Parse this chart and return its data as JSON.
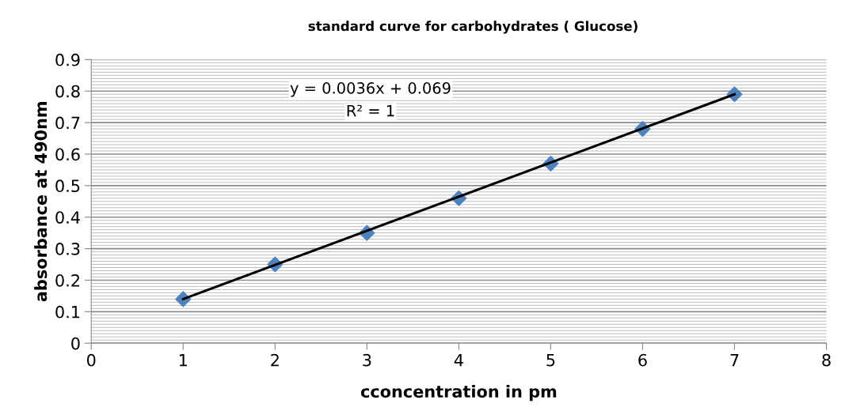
{
  "chart_data": {
    "type": "scatter",
    "title": "standard curve for carbohydrates ( Glucose)",
    "xlabel": "cconcentration in pm",
    "ylabel": "absorbance at 490nm",
    "x": [
      1,
      2,
      3,
      4,
      5,
      6,
      7
    ],
    "series": [
      {
        "color": "#4f81bd",
        "marker": "diamond",
        "values": [
          0.14,
          0.25,
          0.35,
          0.46,
          0.57,
          0.68,
          0.79
        ]
      },
      {
        "type": "line",
        "color": "#000000",
        "marker": "none",
        "x": [
          1,
          7
        ],
        "values": [
          0.14,
          0.79
        ]
      }
    ],
    "xlim": [
      0,
      8
    ],
    "xticks": [
      0,
      1,
      2,
      3,
      4,
      5,
      6,
      7,
      8
    ],
    "ylim": [
      0,
      0.9
    ],
    "yticks": [
      0,
      {
        "value": 0.01,
        "label": null
      },
      {
        "value": 0.02,
        "label": null
      },
      {
        "value": 0.03,
        "label": null
      },
      {
        "value": 0.04,
        "label": null
      },
      {
        "value": 0.05,
        "label": null
      },
      {
        "value": 0.06,
        "label": null
      },
      {
        "value": 0.07,
        "label": null
      },
      {
        "value": 0.08,
        "label": null
      },
      {
        "value": 0.09,
        "label": null
      },
      0.1,
      0.2,
      0.3,
      0.4,
      0.5,
      0.6,
      0.7,
      0.8,
      0.9
    ],
    "grid": "y",
    "annotations": [
      "y = 0.0036x + 0.069",
      "R² = 1"
    ]
  }
}
